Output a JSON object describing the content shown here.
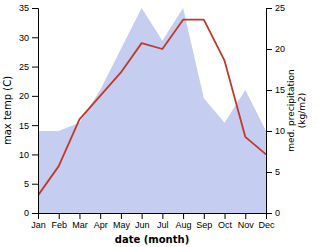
{
  "chart_data": {
    "type": "line",
    "xlabel": "date (month)",
    "ylabel": "max temp (C)",
    "y2label": "med. precipitation\n(kg/m2)",
    "categories": [
      "Jan",
      "Feb",
      "Mar",
      "Apr",
      "May",
      "Jun",
      "Jul",
      "Aug",
      "Sep",
      "Oct",
      "Nov",
      "Dec"
    ],
    "series": [
      {
        "type": "area",
        "axis": "y2",
        "color": "#c5cdf0",
        "values": [
          10,
          10,
          11,
          15,
          20,
          25,
          21,
          25,
          14,
          11,
          15,
          10
        ]
      },
      {
        "type": "line",
        "color": "#c0392b",
        "values": [
          3,
          8,
          16,
          20,
          24,
          29,
          28,
          33,
          33,
          26,
          13,
          10
        ]
      }
    ],
    "ylim": [
      0,
      35
    ],
    "yticks": [
      0,
      5,
      10,
      15,
      20,
      25,
      30,
      35
    ],
    "y2lim": [
      0,
      25
    ],
    "y2ticks": [
      0,
      5,
      10,
      15,
      20,
      25
    ],
    "grid": false
  }
}
